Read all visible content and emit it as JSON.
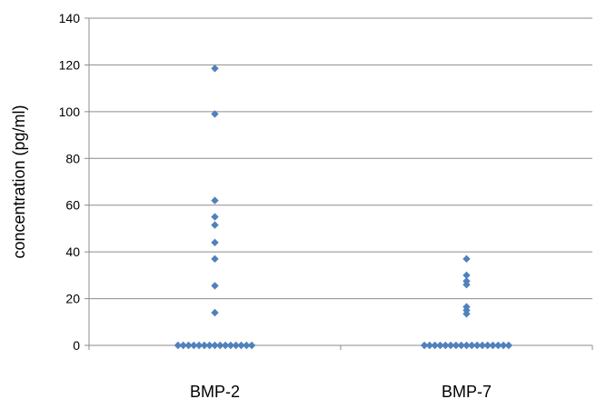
{
  "chart_data": {
    "type": "scatter",
    "title": "",
    "xlabel": "",
    "ylabel": "concentration (pg/ml)",
    "categories": [
      "BMP-2",
      "BMP-7"
    ],
    "ylim": [
      0,
      140
    ],
    "yticks": [
      0,
      20,
      40,
      60,
      80,
      100,
      120,
      140
    ],
    "grid": true,
    "legend": "none",
    "marker_color": "#4F81BD",
    "series": [
      {
        "category": "BMP-2",
        "values": [
          118.5,
          99,
          62,
          55,
          51.5,
          44,
          37,
          25.5,
          14,
          0,
          0,
          0,
          0,
          0,
          0,
          0,
          0,
          0,
          0,
          0,
          0,
          0,
          0,
          0
        ]
      },
      {
        "category": "BMP-7",
        "values": [
          37,
          30,
          27.5,
          26,
          16.5,
          15,
          13.5,
          0,
          0,
          0,
          0,
          0,
          0,
          0,
          0,
          0,
          0,
          0,
          0,
          0,
          0,
          0,
          0,
          0
        ]
      }
    ]
  }
}
